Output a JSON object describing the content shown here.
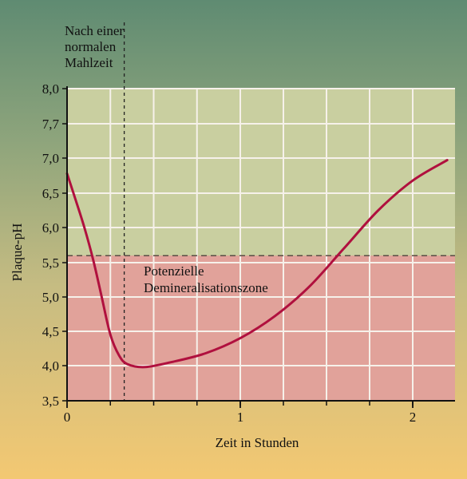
{
  "chart_data": {
    "type": "line",
    "xlabel": "Zeit in Stunden",
    "ylabel": "Plaque-pH",
    "x_ticks": [
      "0",
      "1",
      "2"
    ],
    "y_ticks": [
      "3,5",
      "4,0",
      "4,5",
      "5,0",
      "5,5",
      "6,0",
      "6,5",
      "7,0",
      "7,7",
      "8,0"
    ],
    "xlim": [
      0,
      2.25
    ],
    "grid": true,
    "critical_line": {
      "y": 5.6,
      "style": "dashed"
    },
    "zone_label": [
      "Potenzielle",
      "Demineralisationszone"
    ],
    "meal_marker": {
      "x": 0.33,
      "style": "dashed",
      "label": [
        "Nach einer",
        "normalen",
        "Mahlzeit"
      ]
    },
    "series": [
      {
        "color": "#b0103e",
        "x": [
          0,
          0.05,
          0.1,
          0.15,
          0.2,
          0.25,
          0.3,
          0.35,
          0.45,
          0.6,
          0.8,
          1.0,
          1.2,
          1.4,
          1.6,
          1.8,
          2.0,
          2.2
        ],
        "y": [
          6.78,
          6.4,
          6.0,
          5.55,
          5.0,
          4.45,
          4.15,
          4.02,
          3.98,
          4.05,
          4.18,
          4.4,
          4.72,
          5.15,
          5.7,
          6.25,
          6.68,
          6.97
        ]
      }
    ]
  }
}
